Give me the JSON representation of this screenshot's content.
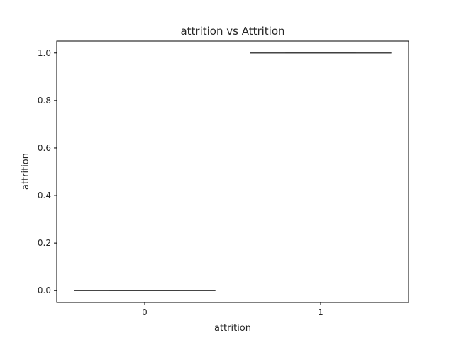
{
  "chart_data": {
    "type": "box",
    "title": "attrition vs Attrition",
    "xlabel": "attrition",
    "ylabel": "attrition",
    "categories": [
      "0",
      "1"
    ],
    "boxes": [
      {
        "category": "0",
        "min": 0.0,
        "q1": 0.0,
        "median": 0.0,
        "q3": 0.0,
        "max": 0.0
      },
      {
        "category": "1",
        "min": 1.0,
        "q1": 1.0,
        "median": 1.0,
        "q3": 1.0,
        "max": 1.0
      }
    ],
    "ylim": [
      -0.05,
      1.05
    ],
    "yticks": [
      0.0,
      0.2,
      0.4,
      0.6,
      0.8,
      1.0
    ],
    "ytick_labels": [
      "0.0",
      "0.2",
      "0.4",
      "0.6",
      "0.8",
      "1.0"
    ],
    "grid": false,
    "colors": {
      "axis": "#000000",
      "box_line": "#3f3f3f",
      "text": "#262626"
    }
  }
}
